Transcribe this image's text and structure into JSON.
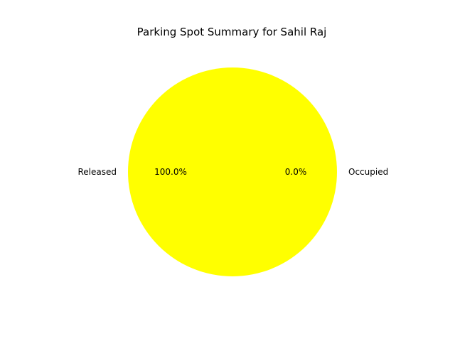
{
  "chart_data": {
    "type": "pie",
    "title": "Parking Spot Summary for Sahil Raj",
    "slices": [
      {
        "label": "Released",
        "value": 100.0,
        "pct_label": "100.0%",
        "color": "#ffff00"
      },
      {
        "label": "Occupied",
        "value": 0.0,
        "pct_label": "0.0%",
        "color": "#ff0000"
      }
    ]
  }
}
